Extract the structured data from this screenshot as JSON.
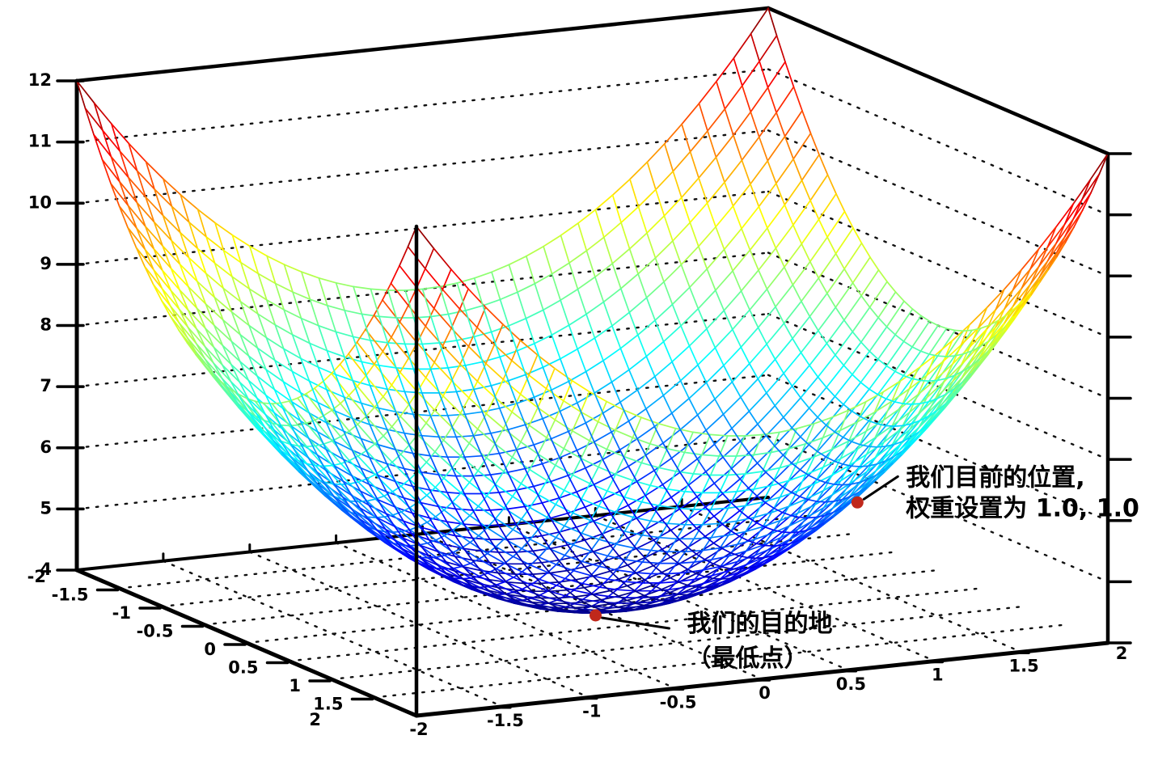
{
  "chart_data": {
    "type": "surface-mesh-3d",
    "title": "",
    "surface": "jet-colored wireframe paraboloid bowl, z = x^2 + y^2 + 4",
    "z_formula": {
      "z0": 4,
      "ax": 1,
      "ay": 1
    },
    "x_range": [
      -2,
      2
    ],
    "y_range": [
      -2,
      2
    ],
    "z_range": [
      4,
      12
    ],
    "mesh_segments": 40,
    "colormap": "jet",
    "x_ticks": [
      -2,
      -1.5,
      -1,
      -0.5,
      0,
      0.5,
      1,
      1.5,
      2
    ],
    "x_tick_labels": [
      "-2",
      "-1.5",
      "-1",
      "-0.5",
      "0",
      "0.5",
      "1",
      "1.5",
      "2"
    ],
    "y_ticks": [
      -2,
      -1.5,
      -1,
      -0.5,
      0,
      0.5,
      1,
      1.5,
      2
    ],
    "y_tick_labels": [
      "-2",
      "-1.5",
      "-1",
      "-0.5",
      "0",
      "0.5",
      "1",
      "1.5",
      "2"
    ],
    "z_ticks": [
      4,
      5,
      6,
      7,
      8,
      9,
      10,
      11,
      12
    ],
    "z_tick_labels": [
      "4",
      "5",
      "6",
      "7",
      "8",
      "9",
      "10",
      "11",
      "12"
    ],
    "wall_grid_z": [
      5,
      6,
      7,
      8,
      9,
      10,
      11
    ],
    "grid_style": "dotted",
    "colors": {
      "axis": "#000000",
      "grid_dots": "#111111",
      "marker": "#c0281c",
      "background": "#ffffff",
      "text": "#000000"
    },
    "annotations": [
      {
        "id": "current-position",
        "x": 1,
        "y": 1,
        "z": 6,
        "lines": [
          "我们目前的位置,",
          "权重设置为 1.0, 1.0"
        ]
      },
      {
        "id": "destination",
        "x": 0,
        "y": 0,
        "z": 4,
        "lines": [
          "我们的目的地",
          "（最低点）"
        ]
      }
    ]
  }
}
